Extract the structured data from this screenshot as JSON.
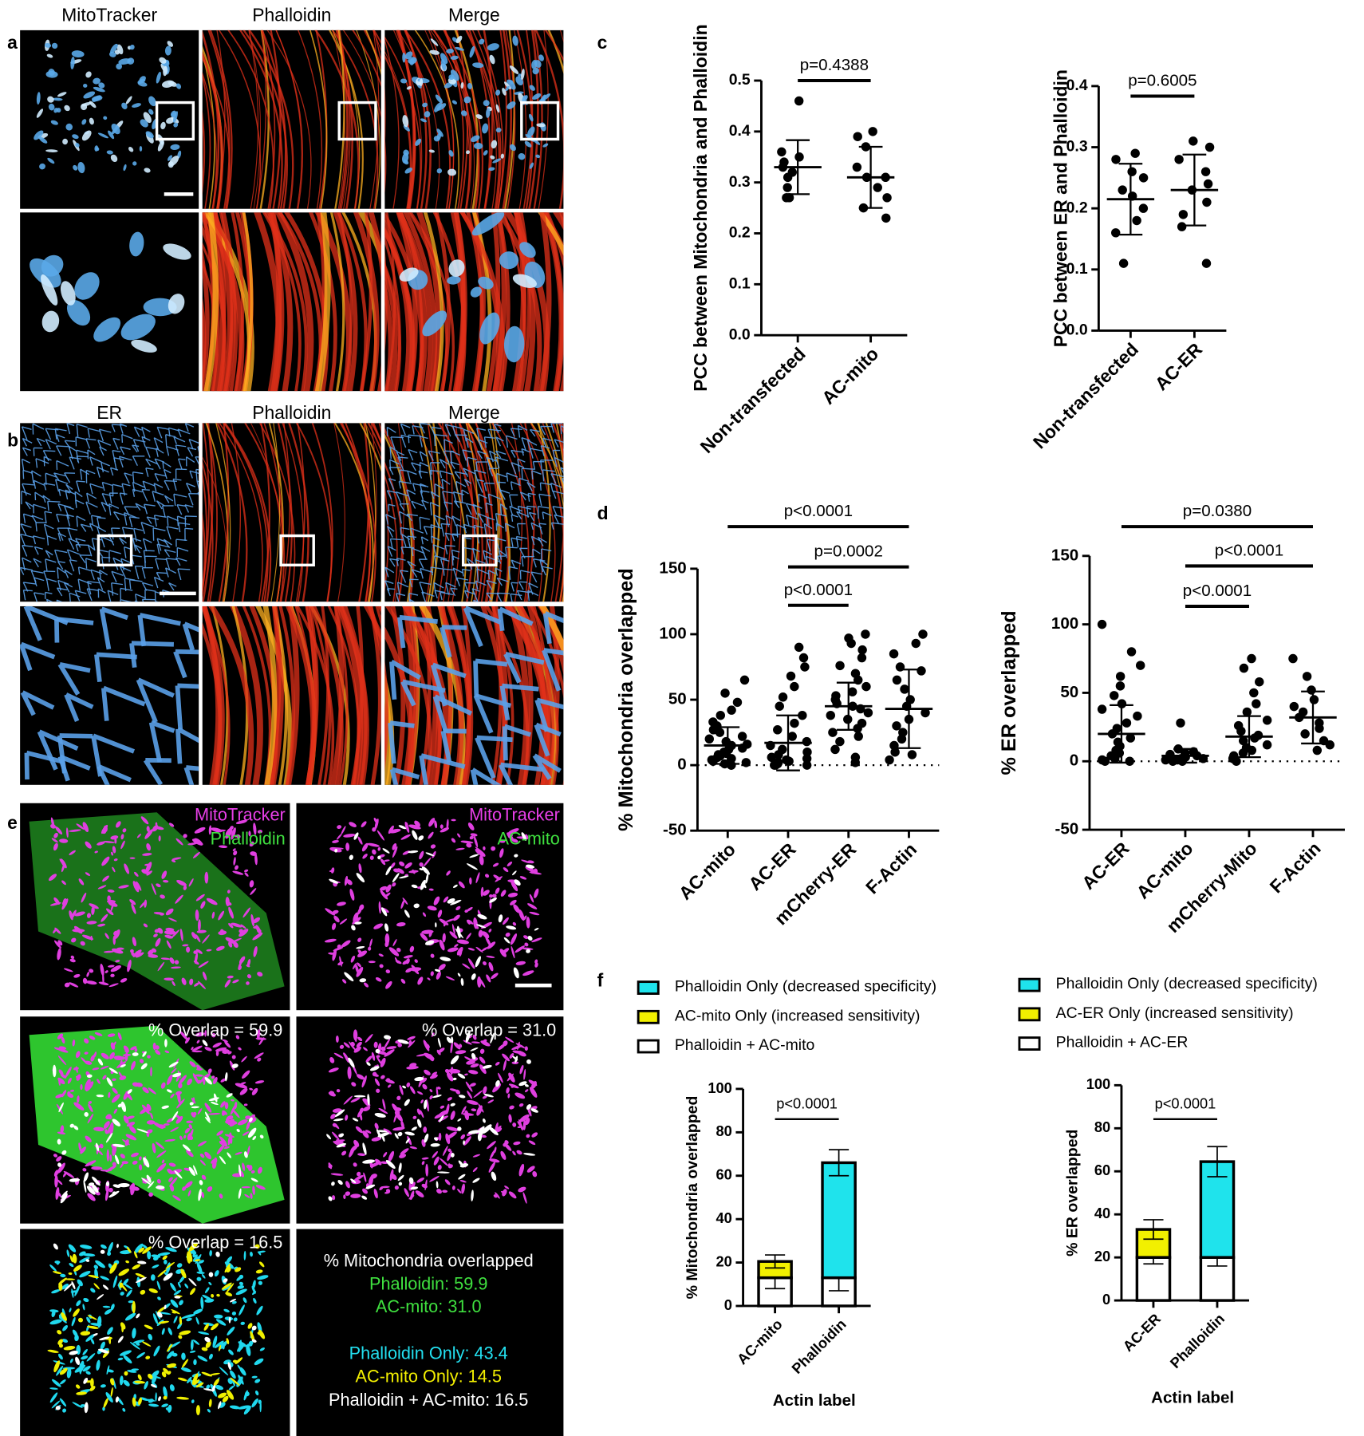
{
  "figure": {
    "panels": [
      "a",
      "b",
      "c",
      "d",
      "e",
      "f"
    ],
    "a": {
      "columns": [
        "MitoTracker",
        "Phalloidin",
        "Merge"
      ]
    },
    "b": {
      "columns": [
        "ER",
        "Phalloidin",
        "Merge"
      ]
    },
    "e": {
      "labels": [
        [
          "MitoTracker",
          "Phalloidin"
        ],
        [
          "MitoTracker",
          "AC-mito"
        ]
      ],
      "overlaps": [
        "% Overlap = 59.9",
        "% Overlap = 31.0",
        "% Overlap = 16.5"
      ],
      "summary": [
        "% Mitochondria overlapped",
        "Phalloidin: 59.9",
        "AC-mito: 31.0",
        "Phalloidin Only: 43.4",
        "AC-mito Only: 14.5",
        "Phalloidin + AC-mito: 16.5"
      ]
    }
  },
  "chart_data": [
    {
      "type": "dotplot",
      "ylabel": "PCC between Mitochondria and Phalloidin",
      "categories": [
        "Non-transfected",
        "AC-mito"
      ],
      "ylim": [
        0,
        0.5
      ],
      "yticks": [
        {
          "value": 0,
          "label": "0.0"
        },
        0.1,
        0.2,
        0.3,
        0.4,
        0.5
      ],
      "points": [
        [
          0.46,
          0.36,
          0.35,
          0.34,
          0.33,
          0.32,
          0.31,
          0.29,
          0.27,
          0.27
        ],
        [
          0.4,
          0.39,
          0.37,
          0.33,
          0.31,
          0.31,
          0.29,
          0.27,
          0.25,
          0.23
        ]
      ],
      "means": [
        0.33,
        0.31
      ],
      "sd": [
        0.053,
        0.06
      ],
      "comparisons": [
        {
          "groups": [
            0,
            1
          ],
          "label": "p=0.4388"
        }
      ]
    },
    {
      "type": "dotplot",
      "ylabel": "PCC between ER and Phalloidin",
      "categories": [
        "Non-transfected",
        "AC-ER"
      ],
      "ylim": [
        0,
        0.4
      ],
      "yticks": [
        {
          "value": 0,
          "label": "0.0"
        },
        0.1,
        0.2,
        0.3,
        0.4
      ],
      "points": [
        [
          0.29,
          0.28,
          0.26,
          0.25,
          0.23,
          0.22,
          0.2,
          0.18,
          0.16,
          0.11
        ],
        [
          0.31,
          0.3,
          0.28,
          0.26,
          0.24,
          0.23,
          0.21,
          0.19,
          0.17,
          0.11
        ]
      ],
      "means": [
        0.215,
        0.23
      ],
      "sd": [
        0.058,
        0.058
      ],
      "comparisons": [
        {
          "groups": [
            0,
            1
          ],
          "label": "p=0.6005"
        }
      ]
    },
    {
      "type": "dotplot",
      "ylabel": "% Mitochondria overlapped",
      "categories": [
        "AC-mito",
        "AC-ER",
        "mCherry-ER",
        "F-Actin"
      ],
      "ylim": [
        -50,
        150
      ],
      "yticks": [
        -50,
        0,
        50,
        100,
        150
      ],
      "zero_line": true,
      "points": [
        [
          65,
          55,
          48,
          42,
          38,
          33,
          30,
          27,
          25,
          22,
          20,
          18,
          16,
          15,
          13,
          12,
          10,
          9,
          8,
          7,
          6,
          5,
          4,
          3,
          2,
          1,
          0,
          0
        ],
        [
          90,
          82,
          75,
          68,
          60,
          52,
          45,
          38,
          32,
          27,
          22,
          18,
          15,
          12,
          10,
          8,
          6,
          5,
          4,
          3,
          2,
          1,
          0,
          0,
          0
        ],
        [
          100,
          97,
          93,
          88,
          82,
          76,
          70,
          65,
          60,
          56,
          53,
          50,
          47,
          45,
          43,
          40,
          38,
          35,
          32,
          28,
          25,
          22,
          18,
          12,
          6,
          2
        ],
        [
          100,
          93,
          85,
          75,
          72,
          65,
          58,
          50,
          45,
          40,
          35,
          30,
          25,
          20,
          15,
          10,
          8,
          4
        ]
      ],
      "means": [
        15,
        17,
        45,
        43
      ],
      "sd": [
        14,
        21,
        18,
        30
      ],
      "comparisons": [
        {
          "groups": [
            0,
            3
          ],
          "label": "p<0.0001"
        },
        {
          "groups": [
            1,
            3
          ],
          "label": "p=0.0002"
        },
        {
          "groups": [
            1,
            2
          ],
          "label": "p<0.0001"
        }
      ]
    },
    {
      "type": "dotplot",
      "ylabel": "% ER overlapped",
      "categories": [
        "AC-ER",
        "AC-mito",
        "mCherry-Mito",
        "F-Actin"
      ],
      "ylim": [
        -50,
        150
      ],
      "yticks": [
        -50,
        0,
        50,
        100,
        150
      ],
      "zero_line": true,
      "points": [
        [
          100,
          80,
          70,
          62,
          55,
          48,
          42,
          38,
          33,
          28,
          24,
          20,
          17,
          14,
          11,
          8,
          6,
          4,
          2,
          1,
          0,
          0
        ],
        [
          28,
          9,
          7,
          6,
          5,
          4,
          3,
          2,
          2,
          1,
          1,
          0,
          0
        ],
        [
          75,
          68,
          58,
          50,
          42,
          36,
          30,
          26,
          22,
          19,
          17,
          15,
          12,
          10,
          8,
          6,
          4,
          2,
          0
        ],
        [
          75,
          62,
          52,
          45,
          40,
          36,
          32,
          28,
          24,
          20,
          15,
          12,
          8
        ]
      ],
      "means": [
        20,
        4,
        18,
        32
      ],
      "sd": [
        21,
        5,
        15,
        19
      ],
      "comparisons": [
        {
          "groups": [
            0,
            3
          ],
          "label": "p=0.0380"
        },
        {
          "groups": [
            1,
            3
          ],
          "label": "p<0.0001"
        },
        {
          "groups": [
            1,
            2
          ],
          "label": "p<0.0001"
        }
      ]
    },
    {
      "type": "bar",
      "stacked": true,
      "ylabel": "% Mitochondria overlapped",
      "xlabel": "Actin label",
      "categories": [
        "AC-mito",
        "Phalloidin"
      ],
      "ylim": [
        0,
        100
      ],
      "yticks": [
        0,
        20,
        40,
        60,
        80,
        100
      ],
      "series": [
        {
          "name": "Phalloidin + AC-mito",
          "color": "#ffffff",
          "values": [
            13,
            13
          ],
          "errors": [
            5,
            6
          ]
        },
        {
          "name": "AC-mito Only (increased sensitivity)",
          "color": "#f2f000",
          "values": [
            7.5,
            0
          ],
          "errors": [
            3,
            null
          ]
        },
        {
          "name": "Phalloidin Only (decreased specificity)",
          "color": "#1fe3ec",
          "values": [
            0,
            53
          ],
          "errors": [
            null,
            6
          ]
        }
      ],
      "comparisons": [
        {
          "groups": [
            0,
            1
          ],
          "label": "p<0.0001"
        }
      ]
    },
    {
      "type": "bar",
      "stacked": true,
      "ylabel": "% ER overlapped",
      "xlabel": "Actin label",
      "categories": [
        "AC-ER",
        "Phalloidin"
      ],
      "ylim": [
        0,
        100
      ],
      "yticks": [
        0,
        20,
        40,
        60,
        80,
        100
      ],
      "series": [
        {
          "name": "Phalloidin + AC-ER",
          "color": "#ffffff",
          "values": [
            20,
            20
          ],
          "errors": [
            3,
            4
          ]
        },
        {
          "name": "AC-ER Only (increased sensitivity)",
          "color": "#f2f000",
          "values": [
            13,
            0
          ],
          "errors": [
            4.5,
            null
          ]
        },
        {
          "name": "Phalloidin Only (decreased specificity)",
          "color": "#1fe3ec",
          "values": [
            0,
            44.5
          ],
          "errors": [
            null,
            7
          ]
        }
      ],
      "comparisons": [
        {
          "groups": [
            0,
            1
          ],
          "label": "p<0.0001"
        }
      ]
    }
  ]
}
